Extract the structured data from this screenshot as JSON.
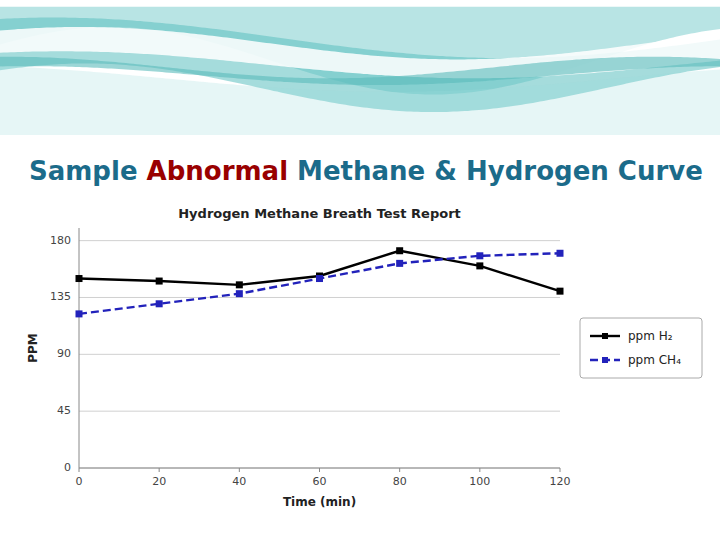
{
  "chart_data": {
    "type": "line",
    "header": [
      {
        "text": "Sample ",
        "color": "#1B6B8A"
      },
      {
        "text": "Abnormal ",
        "color": "#990000"
      },
      {
        "text": "Methane & Hydrogen ",
        "color": "#1B6B8A"
      },
      {
        "text": "Curve",
        "color": "#1B6B8A"
      }
    ],
    "title": "Hydrogen Methane Breath Test Report",
    "x_label": "Time (min)",
    "y_label": "PPM",
    "x": [
      0,
      20,
      40,
      60,
      80,
      100,
      120
    ],
    "series": [
      {
        "name": "ppm H₂",
        "color": "#000000",
        "marker": "square",
        "line_style": "solid",
        "values": [
          150,
          148,
          145,
          152,
          172,
          160,
          140
        ]
      },
      {
        "name": "ppm CH₄",
        "color": "#2222BB",
        "marker": "square",
        "line_style": "dashed",
        "values": [
          122,
          130,
          138,
          150,
          162,
          168,
          170
        ]
      }
    ],
    "xlim": [
      0,
      120
    ],
    "ylim": [
      0,
      190
    ],
    "xticks": [
      0,
      20,
      40,
      60,
      80,
      100,
      120
    ],
    "yticks": [
      0,
      45,
      90,
      135,
      180
    ],
    "grid": true,
    "legend": "right"
  }
}
